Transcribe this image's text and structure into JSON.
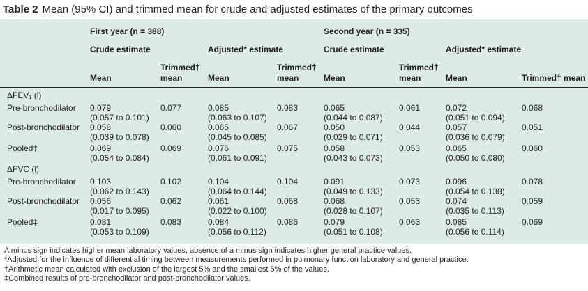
{
  "title": {
    "label": "Table 2",
    "text": "Mean (95% CI) and trimmed mean for crude and adjusted estimates of the primary outcomes"
  },
  "header": {
    "first_year": "First year (n = 388)",
    "second_year": "Second year (n = 335)",
    "crude": "Crude estimate",
    "adjusted": "Adjusted* estimate",
    "mean": "Mean",
    "trimmed_1": "Trimmed†",
    "trimmed_2": "mean",
    "trimmed_full": "Trimmed† mean"
  },
  "sections": [
    {
      "heading": "ΔFEV₁ (l)",
      "rows": [
        {
          "label": "Pre-bronchodilator",
          "fy_crude_mean": "0.079",
          "fy_crude_ci": "(0.057 to 0.101)",
          "fy_crude_trim": "0.077",
          "fy_adj_mean": "0.085",
          "fy_adj_ci": "(0.063 to 0.107)",
          "fy_adj_trim": "0.083",
          "sy_crude_mean": "0.065",
          "sy_crude_ci": "(0.044 to 0.087)",
          "sy_crude_trim": "0.061",
          "sy_adj_mean": "0.072",
          "sy_adj_ci": "(0.051 to 0.094)",
          "sy_adj_trim": "0.068"
        },
        {
          "label": "Post-bronchodilator",
          "fy_crude_mean": "0.058",
          "fy_crude_ci": "(0.039 to 0.078)",
          "fy_crude_trim": "0.060",
          "fy_adj_mean": "0.065",
          "fy_adj_ci": "(0.045 to 0.085)",
          "fy_adj_trim": "0.067",
          "sy_crude_mean": "0.050",
          "sy_crude_ci": "(0.029 to 0.071)",
          "sy_crude_trim": "0.044",
          "sy_adj_mean": "0.057",
          "sy_adj_ci": "(0.036 to 0.079)",
          "sy_adj_trim": "0.051"
        },
        {
          "label": "Pooled‡",
          "fy_crude_mean": "0.069",
          "fy_crude_ci": "(0.054 to 0.084)",
          "fy_crude_trim": "0.069",
          "fy_adj_mean": "0.076",
          "fy_adj_ci": "(0.061 to 0.091)",
          "fy_adj_trim": "0.075",
          "sy_crude_mean": "0.058",
          "sy_crude_ci": "(0.043 to 0.073)",
          "sy_crude_trim": "0.053",
          "sy_adj_mean": "0.065",
          "sy_adj_ci": "(0.050 to 0.080)",
          "sy_adj_trim": "0.060"
        }
      ]
    },
    {
      "heading": "ΔFVC (l)",
      "rows": [
        {
          "label": "Pre-bronchodilator",
          "fy_crude_mean": "0.103",
          "fy_crude_ci": "(0.062 to 0.143)",
          "fy_crude_trim": "0.102",
          "fy_adj_mean": "0.104",
          "fy_adj_ci": "(0.064 to 0.144)",
          "fy_adj_trim": "0.104",
          "sy_crude_mean": "0.091",
          "sy_crude_ci": "(0.049 to 0.133)",
          "sy_crude_trim": "0.073",
          "sy_adj_mean": "0.096",
          "sy_adj_ci": "(0.054 to 0.138)",
          "sy_adj_trim": "0.078"
        },
        {
          "label": "Post-bronchodilator",
          "fy_crude_mean": "0.056",
          "fy_crude_ci": "(0.017 to 0.095)",
          "fy_crude_trim": "0.062",
          "fy_adj_mean": "0.061",
          "fy_adj_ci": "(0.022 to 0.100)",
          "fy_adj_trim": "0.068",
          "sy_crude_mean": "0.068",
          "sy_crude_ci": "(0.028 to 0.107)",
          "sy_crude_trim": "0.053",
          "sy_adj_mean": "0.074",
          "sy_adj_ci": "(0.035 to 0.113)",
          "sy_adj_trim": "0.059"
        },
        {
          "label": "Pooled‡",
          "fy_crude_mean": "0.081",
          "fy_crude_ci": "(0.053 to 0.109)",
          "fy_crude_trim": "0.083",
          "fy_adj_mean": "0.084",
          "fy_adj_ci": "(0.056 to 0.112)",
          "fy_adj_trim": "0.086",
          "sy_crude_mean": "0.079",
          "sy_crude_ci": "(0.051 to 0.108)",
          "sy_crude_trim": "0.063",
          "sy_adj_mean": "0.085",
          "sy_adj_ci": "(0.056 to 0.114)",
          "sy_adj_trim": "0.069"
        }
      ]
    }
  ],
  "footnotes": [
    "A minus sign indicates higher mean laboratory values, absence of a minus sign indicates higher general practice values.",
    "*Adjusted for the influence of differential timing between measurements performed in pulmonary function laboratory and general practice.",
    "†Arithmetic mean calculated with exclusion of the largest 5% and the smallest 5% of the values.",
    "‡Combined results of pre-bronchodilator and post-bronchodilator values."
  ],
  "colors": {
    "table_background": "#dcebe4",
    "text": "#231f20"
  }
}
